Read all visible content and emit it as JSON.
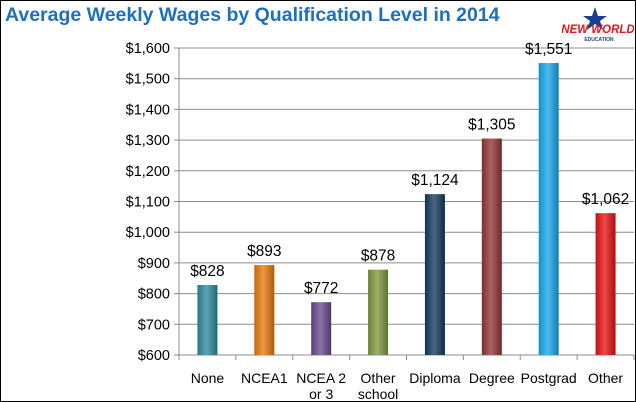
{
  "title": "Average Weekly Wages by Qualification Level in 2014",
  "logo": {
    "line1": "NEW WORLD",
    "line2": "EDUCATION",
    "colors": {
      "red": "#e0161b",
      "blue": "#1b3f8f"
    }
  },
  "chart_data": {
    "type": "bar",
    "title": "Average Weekly Wages by Qualification Level in 2014",
    "categories": [
      [
        "None"
      ],
      [
        "NCEA1"
      ],
      [
        "NCEA 2",
        "or 3"
      ],
      [
        "Other",
        "school"
      ],
      [
        "Diploma"
      ],
      [
        "Degree"
      ],
      [
        "Postgrad"
      ],
      [
        "Other"
      ]
    ],
    "values": [
      828,
      893,
      772,
      878,
      1124,
      1305,
      1551,
      1062
    ],
    "data_labels": [
      "$828",
      "$893",
      "$772",
      "$878",
      "$1,124",
      "$1,305",
      "$1,551",
      "$1,062"
    ],
    "colors": [
      "#2e8b9e",
      "#e8780f",
      "#6a4a8e",
      "#7d9a3c",
      "#163a5f",
      "#943636",
      "#1aa7ec",
      "#e81414"
    ],
    "ylim": [
      600,
      1600
    ],
    "yticks": [
      600,
      700,
      800,
      900,
      1000,
      1100,
      1200,
      1300,
      1400,
      1500,
      1600
    ],
    "ytick_labels": [
      "$600",
      "$700",
      "$800",
      "$900",
      "$1,000",
      "$1,100",
      "$1,200",
      "$1,300",
      "$1,400",
      "$1,500",
      "$1,600"
    ],
    "xlabel": "",
    "ylabel": "",
    "grid": true,
    "legend": false
  }
}
